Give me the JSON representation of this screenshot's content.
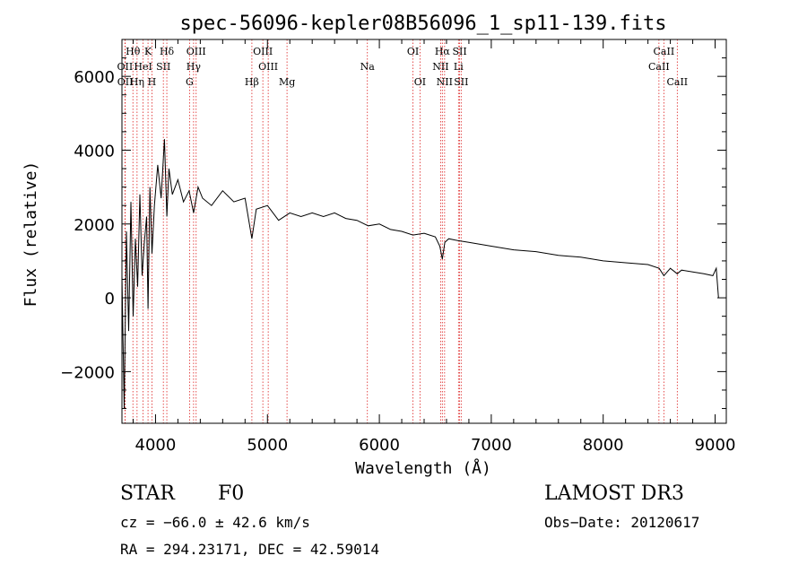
{
  "chart_data": {
    "type": "line",
    "title": "spec-56096-kepler08B56096_1_sp11-139.fits",
    "xlabel": "Wavelength (Å)",
    "ylabel": "Flux (relative)",
    "xlim": [
      3700,
      9100
    ],
    "ylim": [
      -3400,
      7000
    ],
    "x_ticks": [
      4000,
      5000,
      6000,
      7000,
      8000,
      9000
    ],
    "x_tick_labels": [
      "4000",
      "5000",
      "6000",
      "7000",
      "8000",
      "9000"
    ],
    "y_ticks": [
      -2000,
      0,
      2000,
      4000,
      6000
    ],
    "y_tick_labels": [
      "−2000",
      "0",
      "2000",
      "4000",
      "6000"
    ],
    "series": [
      {
        "name": "spectrum",
        "x": [
          3700,
          3720,
          3740,
          3760,
          3780,
          3800,
          3820,
          3840,
          3860,
          3880,
          3900,
          3920,
          3933,
          3950,
          3968,
          3990,
          4020,
          4050,
          4080,
          4101,
          4120,
          4150,
          4200,
          4250,
          4300,
          4340,
          4380,
          4420,
          4500,
          4600,
          4700,
          4800,
          4861,
          4900,
          5000,
          5100,
          5200,
          5300,
          5400,
          5500,
          5600,
          5700,
          5800,
          5900,
          6000,
          6100,
          6200,
          6300,
          6400,
          6500,
          6540,
          6563,
          6585,
          6620,
          6700,
          6800,
          7000,
          7200,
          7400,
          7600,
          7800,
          8000,
          8200,
          8400,
          8500,
          8542,
          8600,
          8662,
          8700,
          8800,
          8900,
          8980,
          9010,
          9030
        ],
        "y": [
          600,
          -3000,
          1800,
          -900,
          2600,
          -500,
          1600,
          300,
          2800,
          600,
          1500,
          2200,
          -300,
          3000,
          1200,
          2500,
          3600,
          2700,
          4300,
          2200,
          3500,
          2800,
          3200,
          2600,
          2900,
          2300,
          3000,
          2700,
          2500,
          2900,
          2600,
          2700,
          1600,
          2400,
          2500,
          2100,
          2300,
          2200,
          2300,
          2200,
          2300,
          2150,
          2100,
          1950,
          2000,
          1850,
          1800,
          1700,
          1750,
          1650,
          1400,
          1050,
          1500,
          1600,
          1550,
          1500,
          1400,
          1300,
          1250,
          1150,
          1100,
          1000,
          950,
          900,
          800,
          600,
          800,
          650,
          750,
          700,
          650,
          600,
          800,
          0
        ]
      }
    ],
    "line_markers": [
      {
        "label": "Hθ",
        "wavelength": 3798,
        "row": 1
      },
      {
        "label": "OII",
        "wavelength": 3727,
        "row": 2
      },
      {
        "label": "OII",
        "wavelength": 3729,
        "row": 3
      },
      {
        "label": "Hη",
        "wavelength": 3835,
        "row": 3
      },
      {
        "label": "K",
        "wavelength": 3933,
        "row": 1
      },
      {
        "label": "HeI",
        "wavelength": 3889,
        "row": 2
      },
      {
        "label": "H",
        "wavelength": 3968,
        "row": 3
      },
      {
        "label": "Hδ",
        "wavelength": 4101,
        "row": 1
      },
      {
        "label": "SII",
        "wavelength": 4070,
        "row": 2
      },
      {
        "label": "OIII",
        "wavelength": 4363,
        "row": 1
      },
      {
        "label": "Hγ",
        "wavelength": 4340,
        "row": 2
      },
      {
        "label": "G",
        "wavelength": 4304,
        "row": 3
      },
      {
        "label": "Hβ",
        "wavelength": 4861,
        "row": 3
      },
      {
        "label": "OIII",
        "wavelength": 4959,
        "row": 1
      },
      {
        "label": "OIII",
        "wavelength": 5007,
        "row": 2
      },
      {
        "label": "Mg",
        "wavelength": 5175,
        "row": 3
      },
      {
        "label": "Na",
        "wavelength": 5893,
        "row": 2
      },
      {
        "label": "OI",
        "wavelength": 6300,
        "row": 1
      },
      {
        "label": "OI",
        "wavelength": 6363,
        "row": 3
      },
      {
        "label": "Hα",
        "wavelength": 6563,
        "row": 1
      },
      {
        "label": "NII",
        "wavelength": 6548,
        "row": 2
      },
      {
        "label": "NII",
        "wavelength": 6583,
        "row": 3
      },
      {
        "label": "SII",
        "wavelength": 6717,
        "row": 1
      },
      {
        "label": "Li",
        "wavelength": 6707,
        "row": 2
      },
      {
        "label": "SII",
        "wavelength": 6731,
        "row": 3
      },
      {
        "label": "CaII",
        "wavelength": 8498,
        "row": 2
      },
      {
        "label": "CaII",
        "wavelength": 8542,
        "row": 1
      },
      {
        "label": "CaII",
        "wavelength": 8662,
        "row": 3
      }
    ]
  },
  "info": {
    "class": "STAR",
    "subclass": "F0",
    "survey": "LAMOST DR3",
    "redshift": "cz = −66.0 ± 42.6 km/s",
    "obs_date": "Obs−Date: 20120617",
    "coords": "RA = 294.23171, DEC =  42.59014"
  }
}
